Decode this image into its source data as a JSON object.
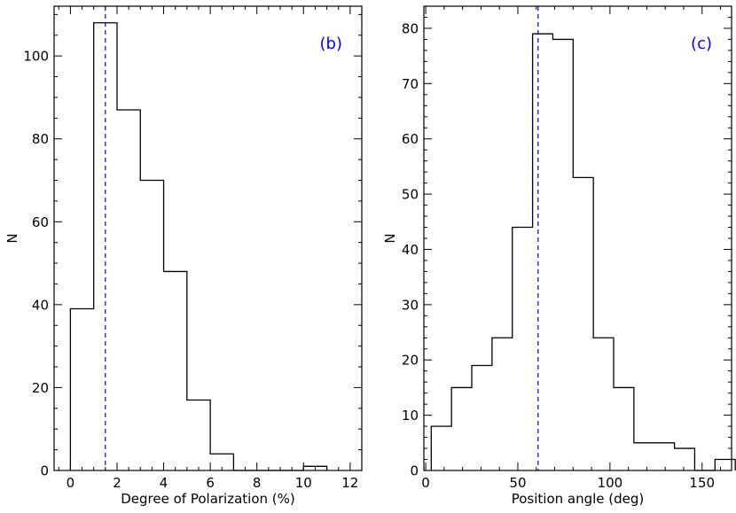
{
  "chart_data": [
    {
      "type": "histogram",
      "panel_label": "(b)",
      "xlabel": "Degree of Polarization (%)",
      "ylabel": "N",
      "xlim": [
        -0.7,
        12.5
      ],
      "ylim": [
        0,
        112
      ],
      "xticks": [
        0,
        2,
        4,
        6,
        8,
        10,
        12
      ],
      "yticks": [
        0,
        20,
        40,
        60,
        80,
        100
      ],
      "bin_edges": [
        0,
        1,
        2,
        3,
        4,
        5,
        6,
        7,
        8,
        9,
        10,
        11
      ],
      "counts": [
        39,
        108,
        87,
        70,
        48,
        17,
        4,
        0,
        0,
        0,
        1
      ],
      "marker_x": 1.5,
      "marker_style": "dashed",
      "colors": {
        "histogram": "#000000",
        "marker": "#0000ff",
        "panel_label": "#0000ff"
      },
      "grid": false
    },
    {
      "type": "histogram",
      "panel_label": "(c)",
      "xlabel": "Position angle (deg)",
      "ylabel": "N",
      "xlim": [
        -1,
        166
      ],
      "ylim": [
        0,
        84
      ],
      "xticks": [
        0,
        50,
        100,
        150
      ],
      "yticks": [
        0,
        10,
        20,
        30,
        40,
        50,
        60,
        70,
        80
      ],
      "bin_edges": [
        3,
        14,
        25,
        36,
        47,
        58,
        69,
        80,
        91,
        102,
        113,
        124,
        135,
        146,
        157,
        168
      ],
      "counts": [
        8,
        15,
        19,
        24,
        44,
        79,
        78,
        53,
        24,
        15,
        5,
        5,
        4,
        0,
        2
      ],
      "marker_x": 61,
      "marker_style": "dashed",
      "colors": {
        "histogram": "#000000",
        "marker": "#0000ff",
        "panel_label": "#0000ff"
      },
      "grid": false
    }
  ]
}
